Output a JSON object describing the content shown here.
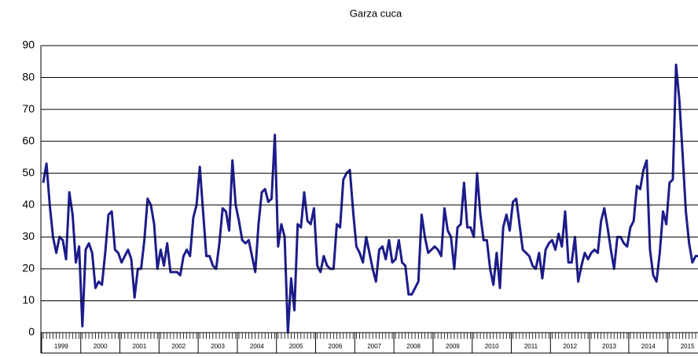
{
  "chart_data": {
    "type": "line",
    "title": "Garza cuca",
    "categories": [
      null,
      null,
      null,
      null,
      null,
      "1999",
      null,
      null,
      null,
      null,
      null,
      null,
      null,
      null,
      null,
      null,
      null,
      "2000",
      null,
      null,
      null,
      null,
      null,
      null,
      null,
      null,
      null,
      null,
      null,
      "2001",
      null,
      null,
      null,
      null,
      null,
      null,
      null,
      null,
      null,
      null,
      null,
      "2002",
      null,
      null,
      null,
      null,
      null,
      null,
      null,
      null,
      null,
      null,
      null,
      "2003",
      null,
      null,
      null,
      null,
      null,
      null,
      null,
      null,
      null,
      null,
      null,
      "2004",
      null,
      null,
      null,
      null,
      null,
      null,
      null,
      null,
      null,
      null,
      null,
      "2005",
      null,
      null,
      null,
      null,
      null,
      null,
      null,
      null,
      null,
      null,
      null,
      "2006",
      null,
      null,
      null,
      null,
      null,
      null,
      null,
      null,
      null,
      null,
      null,
      "2007",
      null,
      null,
      null,
      null,
      null,
      null,
      null,
      null,
      null,
      null,
      null,
      "2008",
      null,
      null,
      null,
      null,
      null,
      null,
      null,
      null,
      null,
      null,
      null,
      "2009",
      null,
      null,
      null,
      null,
      null,
      null,
      null,
      null,
      null,
      null,
      null,
      "2010",
      null,
      null,
      null,
      null,
      null,
      null,
      null,
      null,
      null,
      null,
      null,
      "2011",
      null,
      null,
      null,
      null,
      null,
      null,
      null,
      null,
      null,
      null,
      null,
      "2012",
      null,
      null,
      null,
      null,
      null,
      null,
      null,
      null,
      null,
      null,
      null,
      "2013",
      null,
      null,
      null,
      null,
      null,
      null,
      null,
      null,
      null,
      null,
      null,
      "2014",
      null,
      null,
      null,
      null,
      null,
      null,
      null,
      null,
      null,
      null,
      null,
      "2015",
      null,
      null,
      null,
      null,
      null
    ],
    "series": [
      {
        "color": "#1c1c8a",
        "values": [
          47,
          53,
          40,
          30,
          25,
          30,
          29,
          23,
          44,
          37,
          22,
          27,
          2,
          26,
          28,
          25,
          14,
          16,
          15,
          25,
          37,
          38,
          26,
          25,
          22,
          24,
          26,
          23,
          11,
          20,
          20,
          29,
          42,
          40,
          34,
          20,
          26,
          21,
          28,
          19,
          19,
          19,
          18,
          24,
          26,
          24,
          36,
          40,
          52,
          38,
          24,
          24,
          21,
          20,
          28,
          39,
          38,
          32,
          54,
          40,
          35,
          29,
          28,
          29,
          24,
          19,
          34,
          44,
          45,
          41,
          42,
          62,
          27,
          34,
          30,
          0,
          17,
          7,
          34,
          33,
          44,
          35,
          34,
          39,
          21,
          19,
          24,
          21,
          20,
          20,
          34,
          33,
          48,
          50,
          51,
          38,
          27,
          25,
          22,
          30,
          25,
          20,
          16,
          26,
          27,
          23,
          29,
          22,
          23,
          29,
          22,
          21,
          12,
          12,
          14,
          16,
          37,
          30,
          25,
          26,
          27,
          26,
          24,
          39,
          32,
          30,
          20,
          33,
          34,
          47,
          33,
          33,
          30,
          50,
          37,
          29,
          29,
          20,
          15,
          25,
          14,
          33,
          37,
          32,
          41,
          42,
          34,
          26,
          25,
          24,
          21,
          20,
          25,
          17,
          26,
          28,
          29,
          26,
          31,
          27,
          38,
          22,
          22,
          30,
          16,
          21,
          25,
          23,
          25,
          26,
          25,
          35,
          39,
          33,
          26,
          20,
          30,
          30,
          28,
          27,
          33,
          35,
          46,
          45,
          51,
          54,
          26,
          18,
          16,
          25,
          38,
          34,
          47,
          48,
          84,
          73,
          56,
          38,
          28,
          22,
          24,
          24,
          23
        ]
      }
    ],
    "ylim": [
      0,
      90
    ],
    "yticks": [
      0,
      10,
      20,
      30,
      40,
      50,
      60,
      70,
      80,
      90
    ],
    "grid": true
  }
}
